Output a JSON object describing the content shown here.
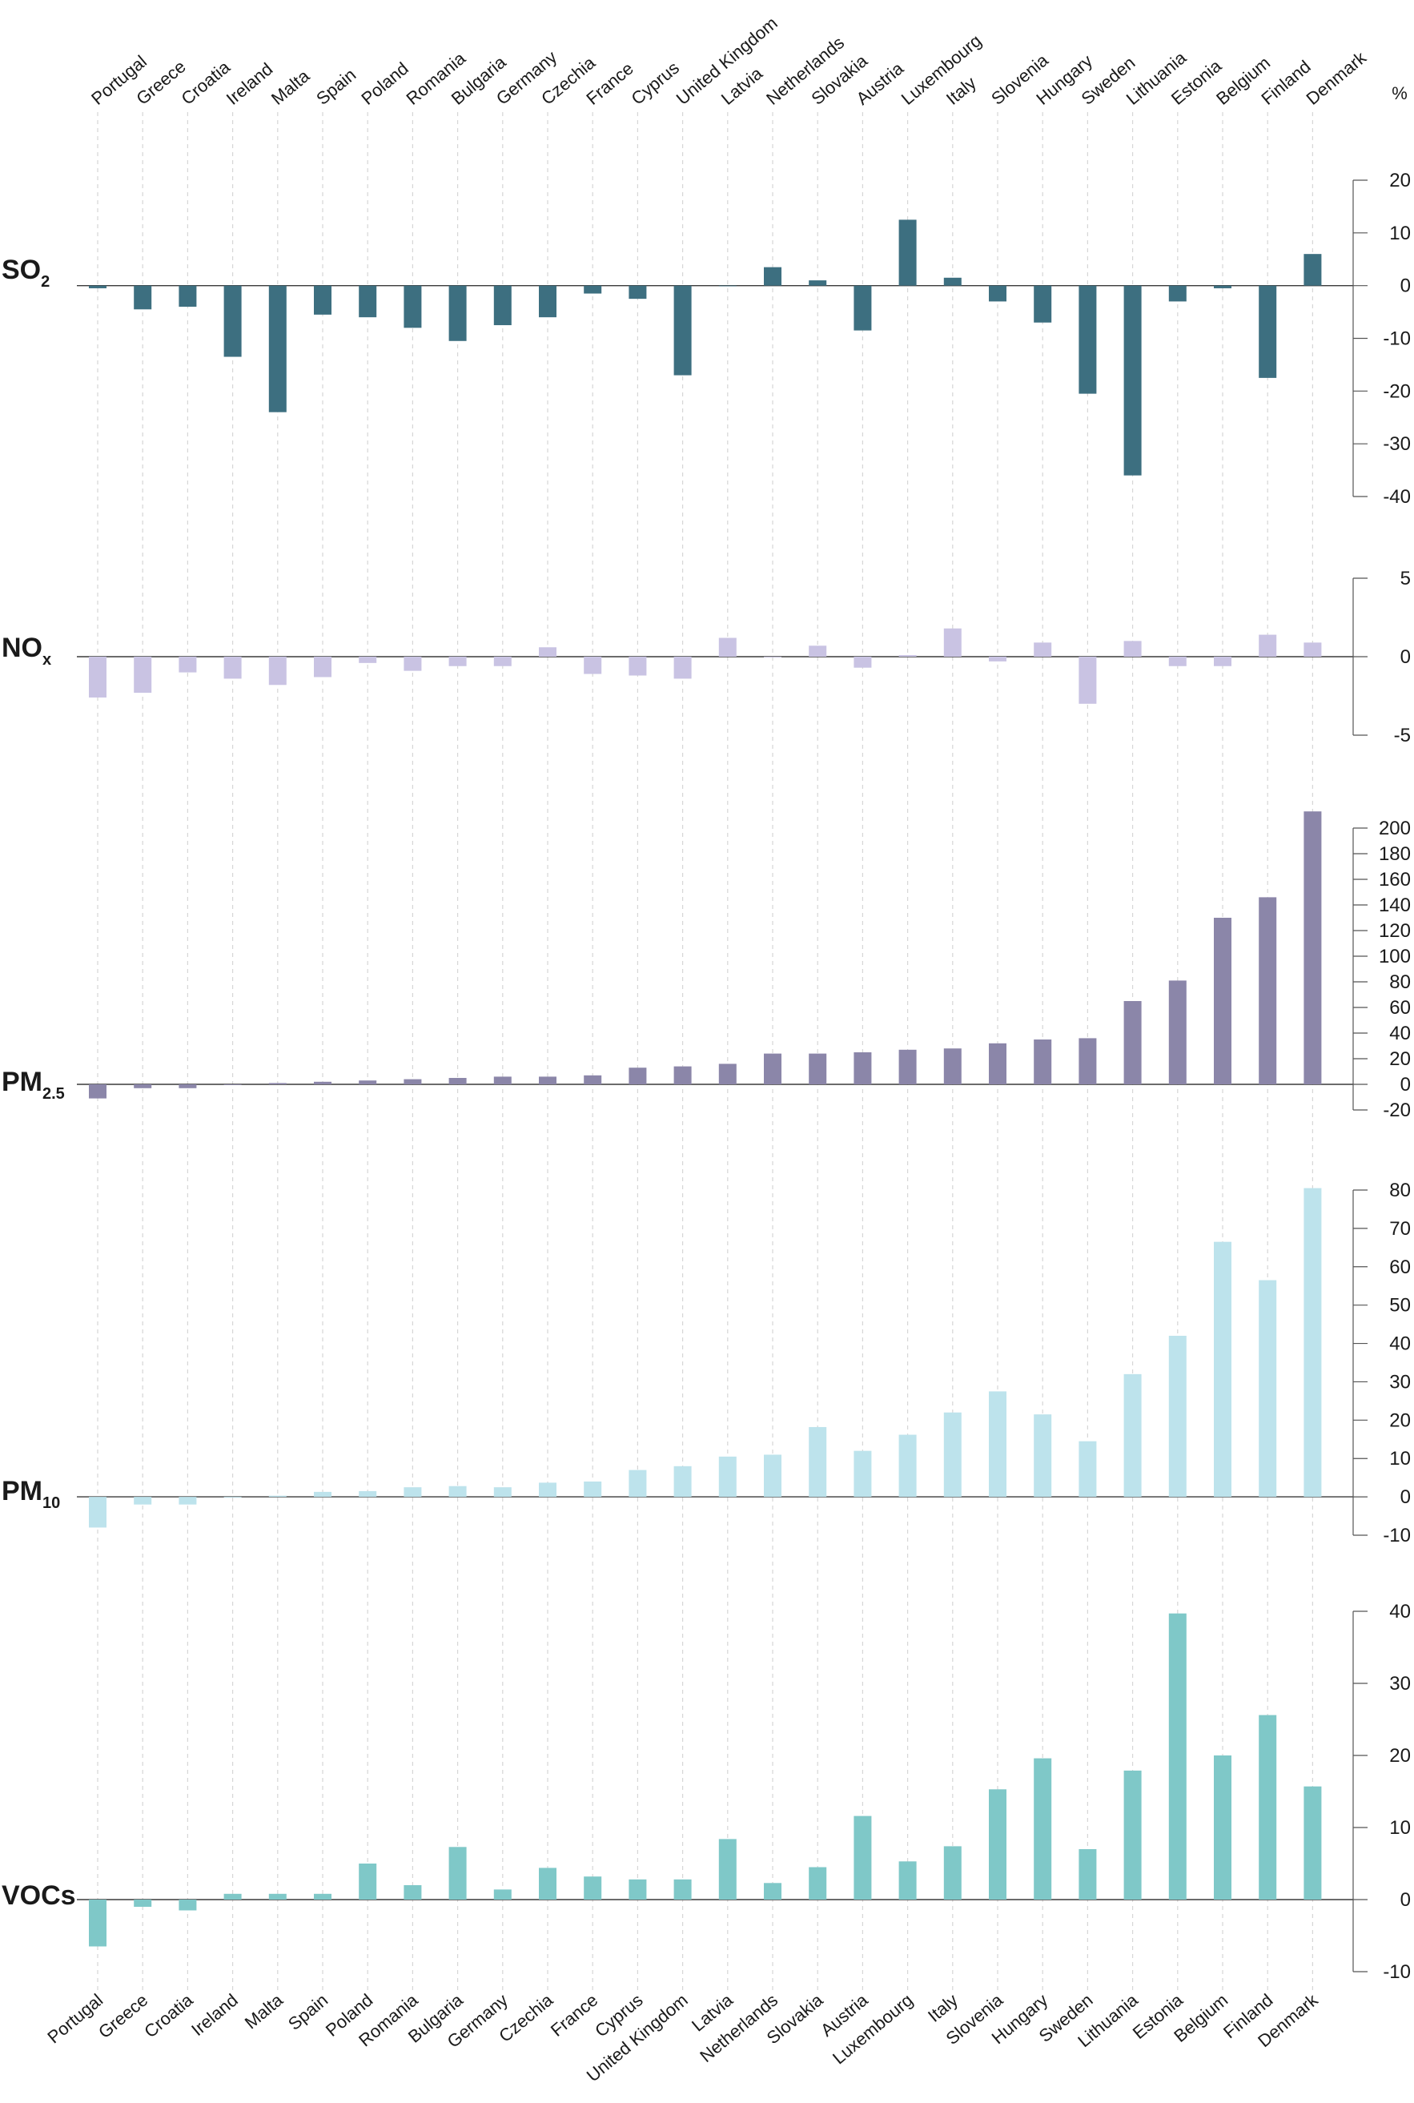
{
  "chart_data": {
    "type": "bar",
    "unit": "%",
    "top_categories": [
      "Portugal",
      "Greece",
      "Croatia",
      "Ireland",
      "Malta",
      "Spain",
      "Poland",
      "Romania",
      "Bulgaria",
      "Germany",
      "Czechia",
      "France",
      "Cyprus",
      "United Kingdom",
      "Latvia",
      "Netherlands",
      "Slovakia",
      "Austria",
      "Luxembourg",
      "Italy",
      "Slovenia",
      "Hungary",
      "Sweden",
      "Lithuania",
      "Estonia",
      "Belgium",
      "Finland",
      "Denmark"
    ],
    "bottom_categories": [
      "Portugal",
      "Greece",
      "Croatia",
      "Ireland",
      "Malta",
      "Spain",
      "Poland",
      "Romania",
      "Bulgaria",
      "Germany",
      "Czechia",
      "France",
      "Cyprus",
      "United Kingdom",
      "Latvia",
      "Netherlands",
      "Slovakia",
      "Austria",
      "Luxembourg",
      "Italy",
      "Slovenia",
      "Hungary",
      "Sweden",
      "Lithuania",
      "Estonia",
      "Belgium",
      "Finland",
      "Denmark"
    ],
    "panels": [
      {
        "label": "SO",
        "label_sub": "2",
        "color": "#3d6f80",
        "ylim": [
          -40,
          20
        ],
        "ticks": [
          20,
          10,
          0,
          -10,
          -20,
          -30,
          -40
        ],
        "values": [
          -0.5,
          -4.5,
          -4,
          -13.5,
          -24,
          -5.5,
          -6,
          -8,
          -10.5,
          -7.5,
          -6,
          -1.5,
          -2.5,
          -17,
          0,
          3.5,
          1,
          -8.5,
          12.5,
          1.5,
          -3,
          -7,
          -20.5,
          -36,
          -3,
          -0.5,
          -17.5,
          6
        ]
      },
      {
        "label": "NO",
        "label_sub": "x",
        "color": "#c9c3e3",
        "ylim": [
          -5,
          5
        ],
        "ticks": [
          5,
          0,
          -5
        ],
        "values": [
          -2.6,
          -2.3,
          -1,
          -1.4,
          -1.8,
          -1.3,
          -0.4,
          -0.9,
          -0.6,
          -0.6,
          0.6,
          -1.1,
          -1.2,
          -1.4,
          1.2,
          0,
          0.7,
          -0.7,
          0.1,
          1.8,
          -0.3,
          0.9,
          -3,
          1,
          -0.6,
          -0.6,
          1.4,
          0.9
        ]
      },
      {
        "label": "PM",
        "label_sub": "2.5",
        "color": "#8b86a9",
        "ylim": [
          -20,
          210
        ],
        "ticks": [
          200,
          180,
          160,
          140,
          120,
          100,
          80,
          60,
          40,
          20,
          0,
          -20
        ],
        "values": [
          -11,
          -3,
          -3,
          0,
          1,
          2,
          3,
          4,
          5,
          6,
          6,
          7,
          13,
          14,
          16,
          24,
          24,
          25,
          27,
          28,
          32,
          35,
          36,
          65,
          81,
          130,
          146,
          213
        ]
      },
      {
        "label": "PM",
        "label_sub": "10",
        "color": "#bde3ec",
        "ylim": [
          -10,
          80
        ],
        "ticks": [
          80,
          70,
          60,
          50,
          40,
          30,
          20,
          10,
          0,
          -10
        ],
        "values": [
          -8,
          -2,
          -2,
          0,
          0.3,
          1.3,
          1.5,
          2.5,
          2.8,
          2.5,
          3.7,
          4,
          7,
          8,
          10.5,
          11,
          18.2,
          12,
          16.2,
          22,
          27.5,
          21.5,
          14.5,
          32,
          42,
          66.5,
          56.5,
          80.5
        ]
      },
      {
        "label": "VOCs",
        "label_sub": "",
        "color": "#7fc8c8",
        "ylim": [
          -10,
          40
        ],
        "ticks": [
          40,
          30,
          20,
          10,
          0,
          -10
        ],
        "values": [
          -6.5,
          -1,
          -1.5,
          0.8,
          0.8,
          0.8,
          5,
          2,
          7.3,
          1.4,
          4.4,
          3.2,
          2.8,
          2.8,
          8.4,
          2.3,
          4.5,
          11.6,
          5.3,
          7.4,
          15.3,
          19.6,
          7,
          17.9,
          39.7,
          20,
          25.6,
          15.7
        ]
      }
    ]
  }
}
